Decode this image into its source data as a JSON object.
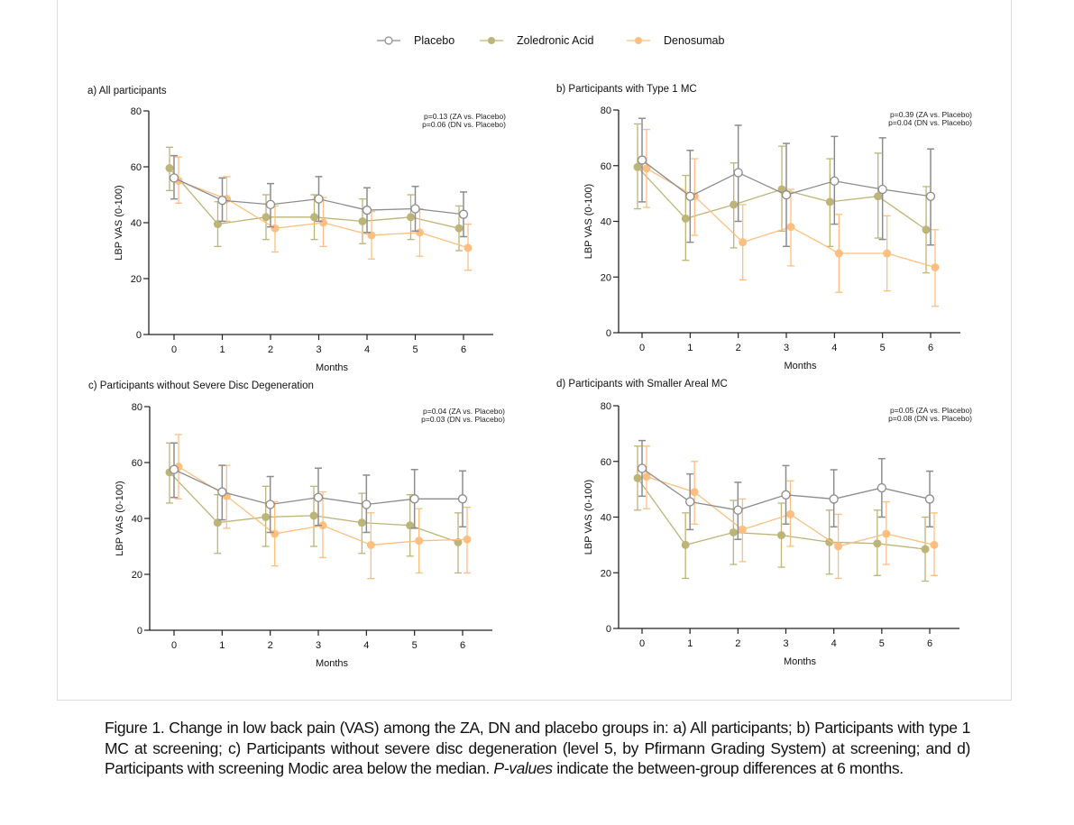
{
  "legend": [
    {
      "name": "Placebo",
      "key": "placebo"
    },
    {
      "name": "Zoledronic Acid",
      "key": "za"
    },
    {
      "name": "Denosumab",
      "key": "dn"
    }
  ],
  "colors": {
    "placebo": "#8c8c8c",
    "placebo_fill": "#ffffff",
    "za": "#bdb478",
    "dn": "#fdbf7f",
    "axis": "#222222"
  },
  "caption": {
    "text_main": "Figure 1. Change in low back pain (VAS) among the ZA, DN and placebo groups in: a) All participants; b) Participants with type 1 MC at screening; c) Participants without severe disc degeneration (level 5, by Pfirmann Grading System) at screening; and d) Participants with screening Modic area below the median. ",
    "text_italic": "P-values",
    "text_end": " indicate the between-group differences at 6 months."
  },
  "chart_data": [
    {
      "type": "line",
      "title": "a) All participants",
      "xlabel": "Months",
      "ylabel": "LBP VAS (0-100)",
      "x": [
        0,
        1,
        2,
        3,
        4,
        5,
        6
      ],
      "xticks": [
        "0",
        "1",
        "2",
        "3",
        "4",
        "5",
        "6"
      ],
      "yticks": [
        "0",
        "20",
        "40",
        "60",
        "80"
      ],
      "ylim": [
        0,
        80
      ],
      "annotations": [
        "p=0.13 (ZA vs. Placebo)",
        "p=0.06 (DN vs. Placebo)"
      ],
      "series": [
        {
          "name": "Placebo",
          "values": [
            56,
            48,
            46.5,
            48.5,
            44.5,
            45,
            43
          ],
          "err_low": [
            48.5,
            40.5,
            38.5,
            40.5,
            36.5,
            37,
            35
          ],
          "err_high": [
            64,
            56,
            54,
            56.5,
            52.5,
            53,
            51
          ]
        },
        {
          "name": "Zoledronic Acid",
          "values": [
            59.5,
            39.5,
            42,
            42,
            40.5,
            42,
            38
          ],
          "err_low": [
            51.5,
            31.5,
            34,
            34,
            32.5,
            34,
            30
          ],
          "err_high": [
            67,
            47.5,
            50,
            50,
            48.5,
            50,
            46
          ]
        },
        {
          "name": "Denosumab",
          "values": [
            55,
            48.5,
            38,
            40,
            35.5,
            36.5,
            31
          ],
          "err_low": [
            47,
            40.5,
            29.5,
            31.5,
            27,
            28,
            23
          ],
          "err_high": [
            63.5,
            56.5,
            46,
            49,
            44,
            45,
            39.5
          ]
        }
      ]
    },
    {
      "type": "line",
      "title": "b) Participants with Type 1 MC",
      "xlabel": "Months",
      "ylabel": "LBP VAS (0-100)",
      "x": [
        0,
        1,
        2,
        3,
        4,
        5,
        6
      ],
      "xticks": [
        "0",
        "1",
        "2",
        "3",
        "4",
        "5",
        "6"
      ],
      "yticks": [
        "0",
        "20",
        "40",
        "60",
        "80"
      ],
      "ylim": [
        0,
        80
      ],
      "annotations": [
        "p=0.39 (ZA vs. Placebo)",
        "p=0.04 (DN vs. Placebo)"
      ],
      "series": [
        {
          "name": "Placebo",
          "values": [
            62,
            49,
            57.5,
            49.5,
            54.5,
            51.5,
            49
          ],
          "err_low": [
            47,
            32.5,
            40,
            31,
            39,
            33.5,
            31.5
          ],
          "err_high": [
            77,
            65.5,
            74.5,
            68,
            70.5,
            70,
            66
          ]
        },
        {
          "name": "Zoledronic Acid",
          "values": [
            59.5,
            41,
            46,
            51.5,
            47,
            49,
            37
          ],
          "err_low": [
            44.5,
            26,
            30.5,
            36.5,
            31,
            34,
            21.5
          ],
          "err_high": [
            75,
            56.5,
            61,
            67,
            62.5,
            64.5,
            52.5
          ]
        },
        {
          "name": "Denosumab",
          "values": [
            59,
            49,
            32.5,
            38,
            28.5,
            28.5,
            23.5
          ],
          "err_low": [
            45,
            35,
            19,
            24,
            14.5,
            15,
            9.5
          ],
          "err_high": [
            73,
            62.5,
            46,
            51.5,
            42.5,
            42,
            37
          ]
        }
      ]
    },
    {
      "type": "line",
      "title": "c) Participants without Severe Disc Degeneration",
      "xlabel": "Months",
      "ylabel": "LBP VAS (0-100)",
      "x": [
        0,
        1,
        2,
        3,
        4,
        5,
        6
      ],
      "xticks": [
        "0",
        "1",
        "2",
        "3",
        "4",
        "5",
        "6"
      ],
      "yticks": [
        "0",
        "20",
        "40",
        "60",
        "80"
      ],
      "ylim": [
        0,
        80
      ],
      "annotations": [
        "p=0.04 (ZA vs. Placebo)",
        "p=0.03 (DN vs. Placebo)"
      ],
      "series": [
        {
          "name": "Placebo",
          "values": [
            57.5,
            49.5,
            45,
            47.5,
            45,
            47,
            47
          ],
          "err_low": [
            47.5,
            39.5,
            35,
            37.5,
            35,
            36.5,
            37
          ],
          "err_high": [
            67,
            59,
            55,
            58,
            55.5,
            57.5,
            57
          ]
        },
        {
          "name": "Zoledronic Acid",
          "values": [
            56.5,
            38.5,
            40.5,
            41,
            38.5,
            37.5,
            31.5
          ],
          "err_low": [
            45.5,
            27.5,
            30,
            30,
            27.5,
            26.5,
            20.5
          ],
          "err_high": [
            67,
            48.5,
            51.5,
            51.5,
            49,
            48.5,
            42
          ]
        },
        {
          "name": "Denosumab",
          "values": [
            58.5,
            48,
            34.5,
            37.5,
            30.5,
            32,
            32.5
          ],
          "err_low": [
            47,
            36.5,
            23,
            26,
            18.5,
            20.5,
            20.5
          ],
          "err_high": [
            70,
            59,
            46,
            49.5,
            42,
            43.5,
            44
          ]
        }
      ]
    },
    {
      "type": "line",
      "title": "d) Participants with Smaller Areal MC",
      "xlabel": "Months",
      "ylabel": "LBP VAS (0-100)",
      "x": [
        0,
        1,
        2,
        3,
        4,
        5,
        6
      ],
      "xticks": [
        "0",
        "1",
        "2",
        "3",
        "4",
        "5",
        "6"
      ],
      "yticks": [
        "0",
        "20",
        "40",
        "60",
        "80"
      ],
      "ylim": [
        0,
        80
      ],
      "annotations": [
        "p=0.05 (ZA vs. Placebo)",
        "p=0.08 (DN vs. Placebo)"
      ],
      "series": [
        {
          "name": "Placebo",
          "values": [
            57.5,
            45.5,
            42.5,
            48,
            46.5,
            50.5,
            46.5
          ],
          "err_low": [
            47.5,
            35.5,
            32,
            37.5,
            36.5,
            40,
            36.5
          ],
          "err_high": [
            67.5,
            55.5,
            52.5,
            58.5,
            57,
            61,
            56.5
          ]
        },
        {
          "name": "Zoledronic Acid",
          "values": [
            54,
            30,
            34.5,
            33.5,
            31,
            30.5,
            28.5
          ],
          "err_low": [
            42.5,
            18,
            23,
            22,
            19.5,
            19,
            17
          ],
          "err_high": [
            65.5,
            41.5,
            46,
            45,
            42.5,
            42.5,
            40
          ]
        },
        {
          "name": "Denosumab",
          "values": [
            54.5,
            49,
            35.5,
            41,
            29.5,
            34,
            30
          ],
          "err_low": [
            43,
            37.5,
            24,
            29.5,
            18,
            23,
            19
          ],
          "err_high": [
            65.5,
            60,
            46.5,
            53,
            41,
            45.5,
            41.5
          ]
        }
      ]
    }
  ]
}
